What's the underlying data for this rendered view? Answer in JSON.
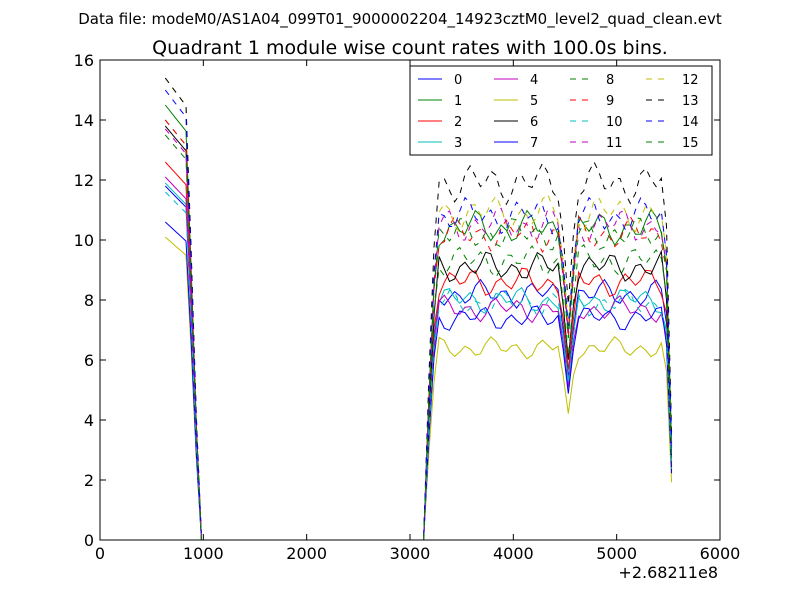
{
  "chart_data": {
    "type": "line",
    "suptitle": "Data file: modeM0/AS1A04_099T01_9000002204_14923cztM0_level2_quad_clean.evt",
    "title": "Quadrant 1 module wise count rates with 100.0s bins.",
    "xlabel": "",
    "ylabel": "",
    "x_offset_label": "+2.68211e8",
    "xlim": [
      0,
      6000
    ],
    "ylim": [
      0,
      16
    ],
    "xticks": [
      0,
      1000,
      2000,
      3000,
      4000,
      5000,
      6000
    ],
    "xtick_labels": [
      "0",
      "1000",
      "2000",
      "3000",
      "4000",
      "5000",
      "6000"
    ],
    "yticks": [
      0,
      2,
      4,
      6,
      8,
      10,
      12,
      14,
      16
    ],
    "ytick_labels": [
      "0",
      "2",
      "4",
      "6",
      "8",
      "10",
      "12",
      "14",
      "16"
    ],
    "grid": false,
    "legend_position": "top-right",
    "legend_columns": 4,
    "x_first_segment": [
      632,
      732,
      782,
      832,
      882,
      932,
      982,
      1032
    ],
    "x_second_segment": [
      3132,
      3182,
      3232,
      3282,
      3332,
      3382,
      3432,
      3482,
      3532,
      3582,
      3632,
      3682,
      3732,
      3782,
      3832,
      3882,
      3932,
      3982,
      4032,
      4082,
      4132,
      4182,
      4232,
      4282,
      4332,
      4382,
      4432,
      4482,
      4532,
      4582,
      4632,
      4682,
      4732,
      4782,
      4832,
      4882,
      4932,
      4982,
      5032,
      5082,
      5132,
      5182,
      5232,
      5282,
      5332,
      5382,
      5432,
      5482,
      5532
    ],
    "series": [
      {
        "name": "0",
        "color": "#0000ff",
        "dash": "solid",
        "peak": 11.8,
        "plateau": 8.2
      },
      {
        "name": "1",
        "color": "#008000",
        "dash": "solid",
        "peak": 14.5,
        "plateau": 10.4
      },
      {
        "name": "2",
        "color": "#ff0000",
        "dash": "solid",
        "peak": 12.6,
        "plateau": 8.6
      },
      {
        "name": "3",
        "color": "#00bfbf",
        "dash": "solid",
        "peak": 11.9,
        "plateau": 8.0
      },
      {
        "name": "4",
        "color": "#bf00bf",
        "dash": "solid",
        "peak": 12.1,
        "plateau": 7.7
      },
      {
        "name": "5",
        "color": "#bfbf00",
        "dash": "solid",
        "peak": 10.1,
        "plateau": 6.4
      },
      {
        "name": "6",
        "color": "#000000",
        "dash": "solid",
        "peak": 13.8,
        "plateau": 9.1
      },
      {
        "name": "7",
        "color": "#0000ff",
        "dash": "solid",
        "peak": 10.6,
        "plateau": 7.4
      },
      {
        "name": "8",
        "color": "#008000",
        "dash": "dashed",
        "peak": 14.0,
        "plateau": 9.3
      },
      {
        "name": "9",
        "color": "#ff0000",
        "dash": "dashed",
        "peak": 14.0,
        "plateau": 10.2
      },
      {
        "name": "10",
        "color": "#00bfbf",
        "dash": "dashed",
        "peak": 11.6,
        "plateau": 7.9
      },
      {
        "name": "11",
        "color": "#bf00bf",
        "dash": "dashed",
        "peak": 13.7,
        "plateau": 10.5
      },
      {
        "name": "12",
        "color": "#bfbf00",
        "dash": "dashed",
        "peak": 15.4,
        "plateau": 10.9
      },
      {
        "name": "13",
        "color": "#000000",
        "dash": "dashed",
        "peak": 15.4,
        "plateau": 11.9
      },
      {
        "name": "14",
        "color": "#0000ff",
        "dash": "dashed",
        "peak": 15.0,
        "plateau": 10.8
      },
      {
        "name": "15",
        "color": "#008000",
        "dash": "dashed",
        "peak": 13.5,
        "plateau": 10.2
      }
    ]
  }
}
